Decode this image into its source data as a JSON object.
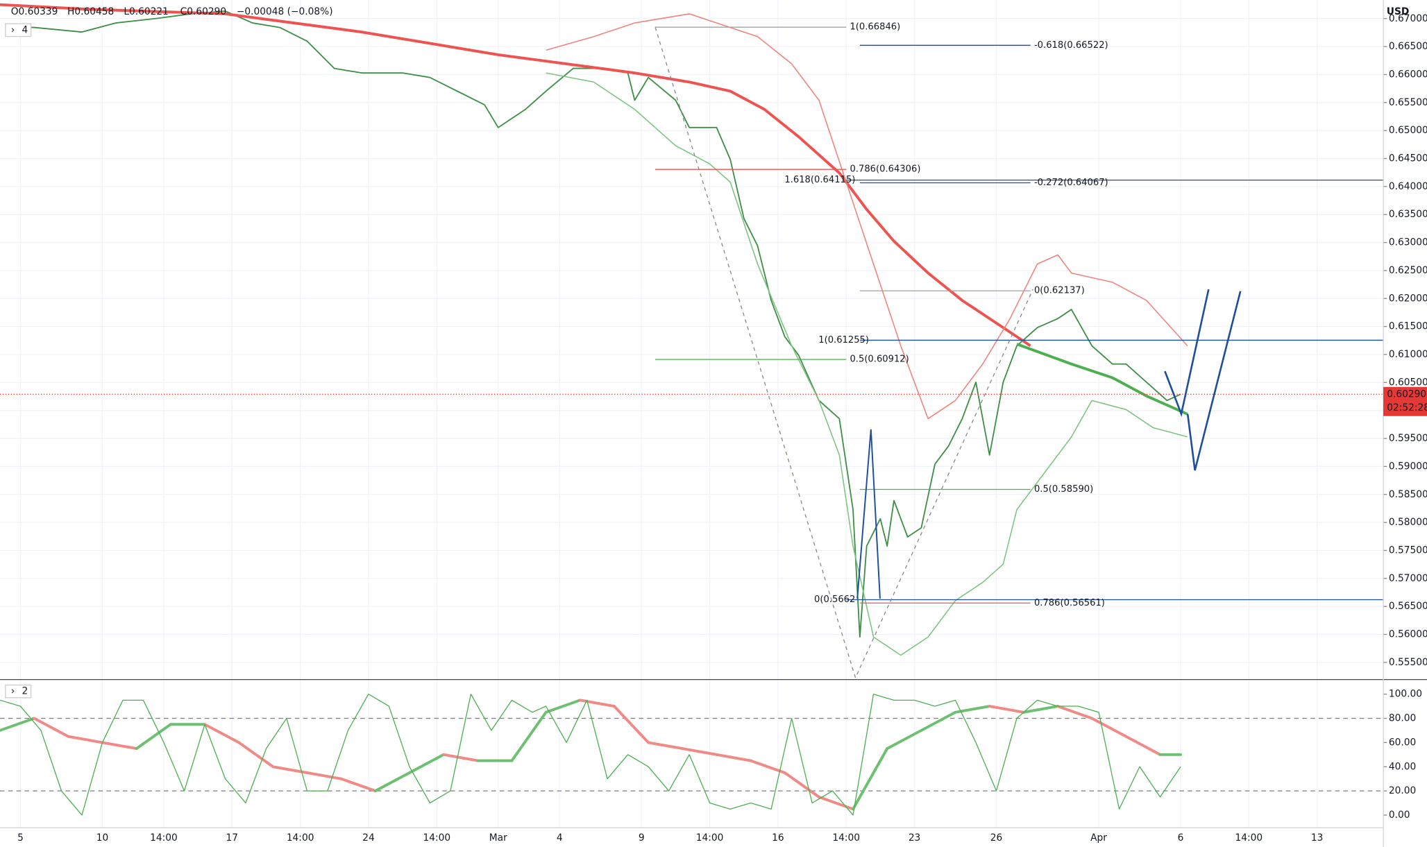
{
  "header": {
    "ohlc": [
      "O0.60339",
      "H0.60458",
      "L0.60221",
      "C0.60290"
    ],
    "change": "−0.00048 (−0.08%)",
    "pane1_count": "4",
    "pane2_count": "2",
    "currency": "USD"
  },
  "chart_data": [
    {
      "type": "line",
      "grid": true,
      "xlim": [
        0,
        202.7
      ],
      "ylim": [
        0.5521,
        0.6733
      ],
      "yticks": [
        {
          "value": 0.555,
          "label": "0.55500"
        },
        {
          "value": 0.56,
          "label": "0.56000"
        },
        {
          "value": 0.565,
          "label": "0.56500"
        },
        {
          "value": 0.57,
          "label": "0.57000"
        },
        {
          "value": 0.575,
          "label": "0.57500"
        },
        {
          "value": 0.58,
          "label": "0.58000"
        },
        {
          "value": 0.585,
          "label": "0.58500"
        },
        {
          "value": 0.59,
          "label": "0.59000"
        },
        {
          "value": 0.595,
          "label": "0.59500"
        },
        {
          "value": 0.6,
          "label": "0.60000"
        },
        {
          "value": 0.605,
          "label": "0.60500"
        },
        {
          "value": 0.61,
          "label": "0.61000"
        },
        {
          "value": 0.615,
          "label": "0.61500"
        },
        {
          "value": 0.62,
          "label": "0.62000"
        },
        {
          "value": 0.625,
          "label": "0.62500"
        },
        {
          "value": 0.63,
          "label": "0.63000"
        },
        {
          "value": 0.635,
          "label": "0.63500"
        },
        {
          "value": 0.64,
          "label": "0.64000"
        },
        {
          "value": 0.645,
          "label": "0.64500"
        },
        {
          "value": 0.65,
          "label": "0.65000"
        },
        {
          "value": 0.655,
          "label": "0.65500"
        },
        {
          "value": 0.66,
          "label": "0.66000"
        },
        {
          "value": 0.665,
          "label": "0.66500"
        },
        {
          "value": 0.67,
          "label": "0.67000"
        }
      ],
      "xticks": [
        {
          "value": 3,
          "label": "5"
        },
        {
          "value": 15,
          "label": "10"
        },
        {
          "value": 24,
          "label": "14:00"
        },
        {
          "value": 34,
          "label": "17"
        },
        {
          "value": 44,
          "label": "14:00"
        },
        {
          "value": 54,
          "label": "24"
        },
        {
          "value": 64,
          "label": "14:00"
        },
        {
          "value": 73,
          "label": "Mar"
        },
        {
          "value": 82,
          "label": "4"
        },
        {
          "value": 94,
          "label": "9"
        },
        {
          "value": 104,
          "label": "14:00"
        },
        {
          "value": 114,
          "label": "16"
        },
        {
          "value": 124,
          "label": "14:00"
        },
        {
          "value": 134,
          "label": "23"
        },
        {
          "value": 146,
          "label": "26"
        },
        {
          "value": 161,
          "label": "Apr"
        },
        {
          "value": 173,
          "label": "6"
        },
        {
          "value": 183,
          "label": "14:00"
        },
        {
          "value": 193,
          "label": "13"
        }
      ],
      "series": [
        {
          "color": "#3f8f46",
          "width": 1.4,
          "x": [
            1,
            5,
            12,
            17,
            23,
            28,
            33,
            37,
            41,
            45,
            49,
            53,
            59,
            63,
            67,
            71,
            73,
            77,
            80,
            84,
            88,
            92,
            93,
            95,
            99,
            101,
            105,
            107,
            109,
            111,
            113,
            115,
            117,
            120,
            123,
            125,
            126,
            127,
            129,
            130,
            131,
            133,
            135,
            137,
            139,
            141,
            143,
            145,
            147,
            149,
            152,
            155,
            157,
            160,
            163,
            165,
            168,
            171,
            173
          ],
          "values": [
            0.66841,
            0.66841,
            0.6676,
            0.66923,
            0.67004,
            0.67085,
            0.67134,
            0.66923,
            0.66841,
            0.66598,
            0.6611,
            0.66029,
            0.66029,
            0.65948,
            0.65704,
            0.6546,
            0.65054,
            0.65379,
            0.65704,
            0.6611,
            0.6611,
            0.66029,
            0.65541,
            0.65948,
            0.65541,
            0.65054,
            0.65054,
            0.64485,
            0.63429,
            0.62941,
            0.61966,
            0.61316,
            0.60991,
            0.60179,
            0.59854,
            0.58229,
            0.55954,
            0.57579,
            0.58066,
            0.57579,
            0.58391,
            0.57741,
            0.57904,
            0.59041,
            0.59366,
            0.59854,
            0.60504,
            0.59204,
            0.60504,
            0.61154,
            0.61479,
            0.61641,
            0.61804,
            0.61154,
            0.60829,
            0.60829,
            0.60504,
            0.60179,
            0.6029
          ]
        },
        {
          "color": "#ef5350",
          "width": 3,
          "x": [
            0,
            13,
            33,
            53,
            73,
            83,
            93,
            101,
            107,
            112,
            117,
            123,
            127,
            131,
            136,
            141,
            147,
            151
          ],
          "values": [
            0.67248,
            0.67166,
            0.67085,
            0.6676,
            0.66354,
            0.66191,
            0.66029,
            0.65866,
            0.65704,
            0.65379,
            0.64891,
            0.64241,
            0.63591,
            0.63023,
            0.62454,
            0.61966,
            0.61479,
            0.61154
          ]
        },
        {
          "color": "#4caf50",
          "width": 3,
          "x": [
            149,
            157,
            163,
            168,
            174
          ],
          "values": [
            0.61186,
            0.60829,
            0.60585,
            0.6026,
            0.59935
          ]
        },
        {
          "color": "#f0837c",
          "width": 1.2,
          "x": [
            80,
            87,
            93,
            101,
            107,
            111,
            116,
            120,
            124,
            128,
            132,
            136,
            140,
            144,
            148,
            152,
            155,
            157,
            163,
            168,
            174
          ],
          "values": [
            0.66435,
            0.66679,
            0.66923,
            0.67085,
            0.66841,
            0.66679,
            0.66191,
            0.65541,
            0.64079,
            0.62616,
            0.61154,
            0.59854,
            0.60179,
            0.60829,
            0.61641,
            0.62616,
            0.62779,
            0.62454,
            0.62291,
            0.61966,
            0.61154
          ]
        },
        {
          "color": "#7cc47f",
          "width": 1.2,
          "x": [
            80,
            87,
            93,
            99,
            104,
            107,
            111,
            116,
            120,
            123,
            125,
            128,
            132,
            136,
            140,
            144,
            147,
            149,
            153,
            157,
            160,
            165,
            169,
            174
          ],
          "values": [
            0.66029,
            0.65866,
            0.65379,
            0.64729,
            0.64404,
            0.64079,
            0.62616,
            0.61154,
            0.60179,
            0.59204,
            0.57579,
            0.55954,
            0.55629,
            0.55954,
            0.56604,
            0.56929,
            0.57254,
            0.58229,
            0.58879,
            0.59529,
            0.60179,
            0.60016,
            0.59691,
            0.59529
          ]
        }
      ],
      "levels": [
        {
          "label": "1(0.66846)",
          "value": 0.66846,
          "x": [
            96,
            124
          ],
          "color": "#a0a0a0",
          "side": "after"
        },
        {
          "label": "-0.618(0.66522)",
          "value": 0.66522,
          "x": [
            126,
            151
          ],
          "color": "#1e4f9c",
          "side": "after"
        },
        {
          "label": "0.786(0.64306)",
          "value": 0.64306,
          "x": [
            96,
            124
          ],
          "color": "#ef5350",
          "side": "after"
        },
        {
          "label": "1.618(0.64115)",
          "value": 0.64115,
          "x": [
            124,
            202.7
          ],
          "color": "#1e4f9c",
          "side": "before"
        },
        {
          "label": "-0.272(0.64067)",
          "value": 0.64067,
          "x": [
            126,
            151
          ],
          "color": "#1e4f9c",
          "side": "after"
        },
        {
          "label": "0(0.62137)",
          "value": 0.62137,
          "x": [
            126,
            151
          ],
          "color": "#a0a0a0",
          "side": "after"
        },
        {
          "label": "1(0.61255)",
          "value": 0.61255,
          "x": [
            126,
            202.7
          ],
          "color": "#1e4f9c",
          "side": "before"
        },
        {
          "label": "0.5(0.60912)",
          "value": 0.60912,
          "x": [
            96,
            124
          ],
          "color": "#4caf50",
          "side": "after"
        },
        {
          "label": "0.5(0.58590)",
          "value": 0.5859,
          "x": [
            126,
            151
          ],
          "color": "#4caf50",
          "side": "after"
        },
        {
          "label": "0(0.5662",
          "value": 0.5662,
          "x": [
            124,
            202.7
          ],
          "color": "#1e4f9c",
          "side": "before"
        },
        {
          "label": "0.786(0.56561)",
          "value": 0.56561,
          "x": [
            126,
            151
          ],
          "color": "#ef5350",
          "side": "after"
        }
      ],
      "last_price": {
        "value": 0.6029,
        "label": "0.60290",
        "countdown": "02:52:28",
        "color": "#e53935"
      }
    },
    {
      "type": "line",
      "ylim": [
        -10.5,
        111.3
      ],
      "up_color": "#6cc070",
      "down_color": "#f08a86",
      "yticks": [
        {
          "value": 0,
          "label": "0.00"
        },
        {
          "value": 20,
          "label": "20.00"
        },
        {
          "value": 40,
          "label": "40.00"
        },
        {
          "value": 60,
          "label": "60.00"
        },
        {
          "value": 80,
          "label": "80.00"
        },
        {
          "value": 100,
          "label": "100.00"
        }
      ],
      "bands": [
        20,
        80
      ],
      "series": [
        {
          "width": 3,
          "x": [
            0,
            5,
            10,
            15,
            20,
            25,
            30,
            35,
            40,
            45,
            50,
            55,
            60,
            65,
            70,
            75,
            80,
            85,
            90,
            95,
            100,
            105,
            110,
            115,
            120,
            125,
            130,
            135,
            140,
            145,
            150,
            155,
            160,
            165,
            170,
            173
          ],
          "values": [
            70,
            80,
            65,
            60,
            55,
            75,
            75,
            60,
            40,
            35,
            30,
            20,
            35,
            50,
            45,
            45,
            85,
            95,
            90,
            60,
            55,
            50,
            45,
            35,
            15,
            5,
            55,
            70,
            85,
            90,
            85,
            90,
            80,
            65,
            50,
            50
          ]
        },
        {
          "width": 1,
          "color": "#4caf50",
          "x": [
            0,
            3,
            6,
            9,
            12,
            15,
            18,
            21,
            24,
            27,
            30,
            33,
            36,
            39,
            42,
            45,
            48,
            51,
            54,
            57,
            60,
            63,
            66,
            69,
            72,
            75,
            78,
            80,
            83,
            86,
            89,
            92,
            95,
            98,
            101,
            104,
            107,
            110,
            113,
            116,
            119,
            122,
            125,
            128,
            131,
            134,
            137,
            140,
            143,
            146,
            149,
            152,
            155,
            158,
            161,
            164,
            167,
            170,
            173
          ],
          "values": [
            95,
            90,
            70,
            20,
            0,
            60,
            95,
            95,
            60,
            20,
            75,
            30,
            10,
            55,
            80,
            20,
            20,
            70,
            100,
            90,
            40,
            10,
            20,
            100,
            70,
            95,
            85,
            90,
            60,
            95,
            30,
            50,
            40,
            20,
            50,
            10,
            5,
            10,
            5,
            80,
            10,
            20,
            0,
            100,
            95,
            95,
            90,
            95,
            60,
            20,
            80,
            95,
            90,
            90,
            85,
            5,
            40,
            15,
            40
          ]
        }
      ]
    }
  ]
}
